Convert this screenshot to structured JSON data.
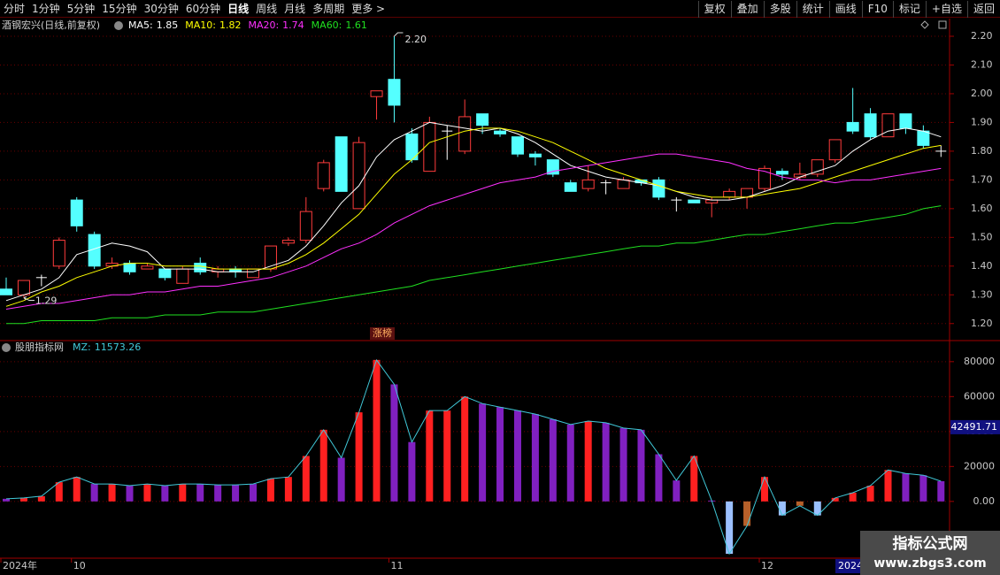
{
  "toolbar": {
    "left": [
      {
        "label": "分时"
      },
      {
        "label": "1分钟"
      },
      {
        "label": "5分钟"
      },
      {
        "label": "15分钟"
      },
      {
        "label": "30分钟"
      },
      {
        "label": "60分钟"
      },
      {
        "label": "日线",
        "active": true
      },
      {
        "label": "周线"
      },
      {
        "label": "月线"
      },
      {
        "label": "多周期"
      },
      {
        "label": "更多 >"
      }
    ],
    "right": [
      {
        "label": "复权"
      },
      {
        "label": "叠加"
      },
      {
        "label": "多股"
      },
      {
        "label": "统计"
      },
      {
        "label": "画线"
      },
      {
        "label": "F10"
      },
      {
        "label": "标记"
      },
      {
        "label": "+自选"
      },
      {
        "label": "返回"
      }
    ]
  },
  "watermark": {
    "title": "指标公式网",
    "url": "www.zbgs3.com"
  },
  "chart_data": [
    {
      "type": "candlestick",
      "title": "酒钢宏兴(日线,前复权)",
      "categories": [
        "2024年",
        null,
        null,
        null,
        "10",
        null,
        null,
        null,
        null,
        null,
        null,
        null,
        null,
        null,
        null,
        null,
        null,
        null,
        null,
        null,
        null,
        null,
        "11",
        null,
        null,
        null,
        null,
        null,
        null,
        null,
        null,
        null,
        null,
        null,
        null,
        null,
        null,
        null,
        null,
        null,
        null,
        null,
        null,
        "12",
        null,
        null,
        null,
        null,
        null,
        null,
        null,
        null,
        null,
        null
      ],
      "open": [
        1.32,
        1.3,
        1.36,
        1.4,
        1.63,
        1.51,
        1.4,
        1.41,
        1.39,
        1.39,
        1.34,
        1.41,
        1.38,
        1.39,
        1.36,
        1.39,
        1.48,
        1.49,
        1.67,
        1.85,
        1.6,
        1.99,
        2.05,
        1.86,
        1.73,
        1.87,
        1.8,
        1.93,
        1.87,
        1.85,
        1.79,
        1.77,
        1.69,
        1.67,
        1.69,
        1.67,
        1.7,
        1.7,
        1.63,
        1.63,
        1.62,
        1.64,
        1.64,
        1.67,
        1.73,
        1.71,
        1.72,
        1.77,
        1.9,
        1.93,
        1.85,
        1.93,
        1.87,
        1.8
      ],
      "high": [
        1.36,
        1.35,
        1.37,
        1.5,
        1.64,
        1.52,
        1.43,
        1.42,
        1.41,
        1.39,
        1.4,
        1.43,
        1.4,
        1.4,
        1.39,
        1.47,
        1.5,
        1.64,
        1.77,
        1.85,
        1.85,
        2.01,
        2.2,
        1.88,
        1.92,
        1.89,
        1.98,
        1.93,
        1.88,
        1.85,
        1.8,
        1.77,
        1.7,
        1.75,
        1.7,
        1.71,
        1.7,
        1.71,
        1.64,
        1.63,
        1.64,
        1.67,
        1.67,
        1.75,
        1.74,
        1.76,
        1.77,
        1.84,
        2.02,
        1.95,
        1.93,
        1.93,
        1.89,
        1.82
      ],
      "low": [
        1.3,
        1.29,
        1.33,
        1.39,
        1.52,
        1.39,
        1.39,
        1.37,
        1.39,
        1.35,
        1.34,
        1.37,
        1.36,
        1.36,
        1.36,
        1.38,
        1.47,
        1.48,
        1.66,
        1.66,
        1.6,
        1.91,
        1.9,
        1.76,
        1.73,
        1.77,
        1.79,
        1.86,
        1.85,
        1.78,
        1.75,
        1.71,
        1.66,
        1.66,
        1.65,
        1.67,
        1.68,
        1.63,
        1.59,
        1.62,
        1.57,
        1.63,
        1.6,
        1.66,
        1.7,
        1.7,
        1.71,
        1.76,
        1.86,
        1.84,
        1.85,
        1.86,
        1.81,
        1.78
      ],
      "close": [
        1.3,
        1.35,
        1.36,
        1.49,
        1.54,
        1.4,
        1.41,
        1.38,
        1.4,
        1.36,
        1.39,
        1.38,
        1.39,
        1.38,
        1.39,
        1.47,
        1.49,
        1.59,
        1.76,
        1.66,
        1.83,
        2.01,
        1.96,
        1.77,
        1.9,
        1.87,
        1.92,
        1.89,
        1.86,
        1.79,
        1.78,
        1.72,
        1.66,
        1.7,
        1.69,
        1.7,
        1.69,
        1.64,
        1.63,
        1.62,
        1.63,
        1.66,
        1.67,
        1.74,
        1.72,
        1.72,
        1.77,
        1.84,
        1.87,
        1.85,
        1.93,
        1.88,
        1.82,
        1.8
      ],
      "up_color": "#ff3c3c",
      "down_color": "#54ffff",
      "flat_color": "#ffffff",
      "series": [
        {
          "name": "MA5:",
          "color": "#ffffff",
          "values": [
            1.28,
            1.3,
            1.32,
            1.36,
            1.44,
            1.46,
            1.48,
            1.47,
            1.45,
            1.39,
            1.39,
            1.39,
            1.38,
            1.38,
            1.38,
            1.4,
            1.42,
            1.47,
            1.54,
            1.62,
            1.68,
            1.78,
            1.84,
            1.87,
            1.9,
            1.89,
            1.88,
            1.87,
            1.88,
            1.86,
            1.83,
            1.79,
            1.75,
            1.73,
            1.71,
            1.7,
            1.69,
            1.68,
            1.66,
            1.64,
            1.63,
            1.63,
            1.64,
            1.66,
            1.68,
            1.71,
            1.73,
            1.75,
            1.8,
            1.84,
            1.87,
            1.88,
            1.87,
            1.85
          ]
        },
        {
          "name": "MA10:",
          "color": "#ffff00",
          "values": [
            1.26,
            1.28,
            1.31,
            1.33,
            1.36,
            1.38,
            1.4,
            1.41,
            1.41,
            1.4,
            1.4,
            1.4,
            1.39,
            1.39,
            1.39,
            1.39,
            1.41,
            1.44,
            1.48,
            1.53,
            1.58,
            1.65,
            1.72,
            1.77,
            1.83,
            1.85,
            1.87,
            1.88,
            1.88,
            1.87,
            1.85,
            1.83,
            1.8,
            1.77,
            1.74,
            1.72,
            1.7,
            1.68,
            1.66,
            1.65,
            1.64,
            1.64,
            1.64,
            1.65,
            1.66,
            1.67,
            1.69,
            1.71,
            1.73,
            1.75,
            1.77,
            1.79,
            1.81,
            1.82
          ]
        },
        {
          "name": "MA20:",
          "color": "#ff30ff",
          "values": [
            1.25,
            1.26,
            1.27,
            1.27,
            1.28,
            1.29,
            1.3,
            1.3,
            1.31,
            1.31,
            1.32,
            1.33,
            1.33,
            1.34,
            1.35,
            1.36,
            1.38,
            1.4,
            1.43,
            1.46,
            1.48,
            1.51,
            1.55,
            1.58,
            1.61,
            1.63,
            1.65,
            1.67,
            1.69,
            1.7,
            1.71,
            1.73,
            1.74,
            1.75,
            1.76,
            1.77,
            1.78,
            1.79,
            1.79,
            1.78,
            1.77,
            1.76,
            1.74,
            1.73,
            1.71,
            1.7,
            1.7,
            1.69,
            1.7,
            1.7,
            1.71,
            1.72,
            1.73,
            1.74
          ]
        },
        {
          "name": "MA60:",
          "color": "#20e020",
          "values": [
            1.2,
            1.2,
            1.21,
            1.21,
            1.21,
            1.21,
            1.22,
            1.22,
            1.22,
            1.23,
            1.23,
            1.23,
            1.24,
            1.24,
            1.24,
            1.25,
            1.26,
            1.27,
            1.28,
            1.29,
            1.3,
            1.31,
            1.32,
            1.33,
            1.35,
            1.36,
            1.37,
            1.38,
            1.39,
            1.4,
            1.41,
            1.42,
            1.43,
            1.44,
            1.45,
            1.46,
            1.47,
            1.47,
            1.48,
            1.48,
            1.49,
            1.5,
            1.51,
            1.51,
            1.52,
            1.53,
            1.54,
            1.55,
            1.55,
            1.56,
            1.57,
            1.58,
            1.6,
            1.61
          ]
        }
      ],
      "max_label": "2.20",
      "min_label": "1.29",
      "event_label": "涨榜",
      "ylim": [
        1.15,
        2.24
      ],
      "yticks": [
        {
          "value": 1.2,
          "label": "1.20"
        },
        {
          "value": 1.3,
          "label": "1.30"
        },
        {
          "value": 1.4,
          "label": "1.40"
        },
        {
          "value": 1.5,
          "label": "1.50"
        },
        {
          "value": 1.6,
          "label": "1.60"
        },
        {
          "value": 1.7,
          "label": "1.70"
        },
        {
          "value": 1.8,
          "label": "1.80"
        },
        {
          "value": 1.9,
          "label": "1.90"
        },
        {
          "value": 2.0,
          "label": "2.00"
        },
        {
          "value": 2.1,
          "label": "2.10"
        },
        {
          "value": 2.2,
          "label": "2.20"
        }
      ],
      "grid": true
    },
    {
      "type": "bar",
      "title": "股朋指标网",
      "series": [
        {
          "name": "MZ:",
          "color": "#40c8d8",
          "values": [
            1500,
            2000,
            3000,
            11000,
            14000,
            10000,
            10000,
            9000,
            10000,
            9000,
            10000,
            10000,
            9500,
            9500,
            10000,
            13000,
            14000,
            26000,
            41000,
            25000,
            51000,
            81000,
            67000,
            34000,
            52000,
            52000,
            60000,
            56000,
            54000,
            52000,
            50000,
            47000,
            44000,
            46000,
            45000,
            42000,
            41000,
            27000,
            12000,
            26000,
            500,
            -30000,
            -14000,
            14000,
            -8000,
            -2500,
            -8000,
            2000,
            5000,
            9000,
            18000,
            16000,
            15000,
            11573.26
          ],
          "colors": [
            "#8020c0",
            "#ff2020",
            "#ff2020",
            "#ff2020",
            "#ff2020",
            "#8020c0",
            "#ff2020",
            "#8020c0",
            "#ff2020",
            "#8020c0",
            "#ff2020",
            "#8020c0",
            "#8020c0",
            "#8020c0",
            "#8020c0",
            "#ff2020",
            "#ff2020",
            "#ff2020",
            "#ff2020",
            "#8020c0",
            "#ff2020",
            "#ff2020",
            "#8020c0",
            "#8020c0",
            "#ff2020",
            "#ff2020",
            "#ff2020",
            "#8020c0",
            "#8020c0",
            "#8020c0",
            "#8020c0",
            "#8020c0",
            "#8020c0",
            "#ff2020",
            "#8020c0",
            "#8020c0",
            "#8020c0",
            "#8020c0",
            "#8020c0",
            "#ff2020",
            "#8020c0",
            "#9cc0ff",
            "#b8602a",
            "#ff2020",
            "#9cc0ff",
            "#b8602a",
            "#9cc0ff",
            "#ff2020",
            "#ff2020",
            "#ff2020",
            "#ff2020",
            "#8020c0",
            "#8020c0",
            "#8020c0"
          ]
        }
      ],
      "cursor": {
        "x_label": "2024",
        "value": 42491.71
      },
      "ylim": [
        -33000,
        87000
      ],
      "yticks": [
        {
          "value": 0,
          "label": "0.00"
        },
        20000,
        40000,
        60000,
        80000
      ],
      "grid": true
    }
  ]
}
